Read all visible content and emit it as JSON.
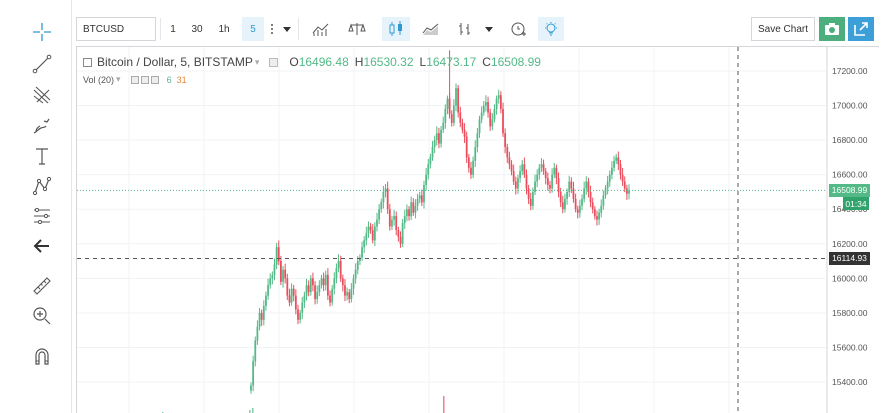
{
  "top_toolbar": {
    "symbol": "BTCUSD",
    "intervals": [
      "1",
      "30",
      "1h",
      "5"
    ],
    "active_interval": "5",
    "save_label": "Save Chart"
  },
  "legend": {
    "title": "Bitcoin / Dollar, 5, BITSTAMP",
    "o_label": "O",
    "o_value": "16496.48",
    "h_label": "H",
    "h_value": "16530.32",
    "l_label": "L",
    "l_value": "16473.17",
    "c_label": "C",
    "c_value": "16508.99",
    "vol_label": "Vol (20)",
    "vol_value_1": "6",
    "vol_value_2": "31"
  },
  "price_axis": {
    "ticks": [
      "17200.00",
      "17000.00",
      "16800.00",
      "16600.00",
      "16400.00",
      "16200.00",
      "16000.00",
      "15800.00",
      "15600.00",
      "15400.00"
    ],
    "last_price": "16508.99",
    "countdown": "01:34",
    "crosshair_price": "16114.93"
  },
  "icons": {
    "left_toolbar": [
      "crosshair-icon",
      "trendline-icon",
      "pitchfork-icon",
      "brush-icon",
      "text-icon",
      "pattern-icon",
      "fib-icon",
      "back-arrow-icon",
      "ruler-icon",
      "zoom-in-icon",
      "magnet-icon"
    ]
  },
  "colors": {
    "up": "#53b987",
    "down": "#eb4d5c",
    "accent": "#2e9bd6",
    "last_price": "#53b987",
    "countdown": "#2fa36b",
    "crosshair_tag": "#333333"
  },
  "chart_data": {
    "type": "candlestick",
    "title": "Bitcoin / Dollar, 5, BITSTAMP",
    "ylim": [
      15300,
      17300
    ],
    "y_ticks": [
      17200,
      17000,
      16800,
      16600,
      16400,
      16200,
      16000,
      15800,
      15600,
      15400
    ],
    "last_close": 16508.99,
    "crosshair_y": 16114.93,
    "closes": [
      15380,
      15520,
      15640,
      15720,
      15800,
      15760,
      15840,
      15900,
      15960,
      16000,
      16020,
      16080,
      16180,
      16100,
      15980,
      16050,
      16000,
      15900,
      15860,
      15940,
      15900,
      15820,
      15760,
      15800,
      15860,
      15900,
      15960,
      15920,
      16000,
      15960,
      15880,
      15920,
      15960,
      16000,
      15960,
      16020,
      15900,
      15860,
      15940,
      16000,
      16060,
      16100,
      16000,
      15960,
      15900,
      15920,
      15880,
      15940,
      16000,
      16050,
      16100,
      16120,
      16180,
      16220,
      16260,
      16300,
      16280,
      16220,
      16300,
      16340,
      16400,
      16440,
      16500,
      16520,
      16400,
      16300,
      16340,
      16360,
      16280,
      16240,
      16200,
      16320,
      16360,
      16400,
      16360,
      16440,
      16380,
      16420,
      16460,
      16480,
      16440,
      16540,
      16600,
      16660,
      16700,
      16760,
      16800,
      16840,
      16780,
      16860,
      16900,
      16980,
      17040,
      16950,
      16900,
      17000,
      17100,
      16960,
      16900,
      16860,
      16820,
      16700,
      16640,
      16600,
      16680,
      16760,
      16840,
      16920,
      16960,
      17000,
      17020,
      16960,
      16880,
      16920,
      16980,
      17040,
      17060,
      16980,
      16840,
      16760,
      16700,
      16660,
      16620,
      16560,
      16520,
      16580,
      16620,
      16660,
      16600,
      16520,
      16460,
      16420,
      16500,
      16560,
      16600,
      16640,
      16660,
      16620,
      16580,
      16540,
      16520,
      16600,
      16640,
      16580,
      16500,
      16440,
      16400,
      16460,
      16500,
      16560,
      16520,
      16460,
      16400,
      16380,
      16420,
      16460,
      16520,
      16560,
      16500,
      16440,
      16400,
      16360,
      16340,
      16380,
      16420,
      16480,
      16520,
      16560,
      16600,
      16640,
      16680,
      16700,
      16660,
      16600,
      16560,
      16520,
      16490,
      16508.99
    ]
  }
}
